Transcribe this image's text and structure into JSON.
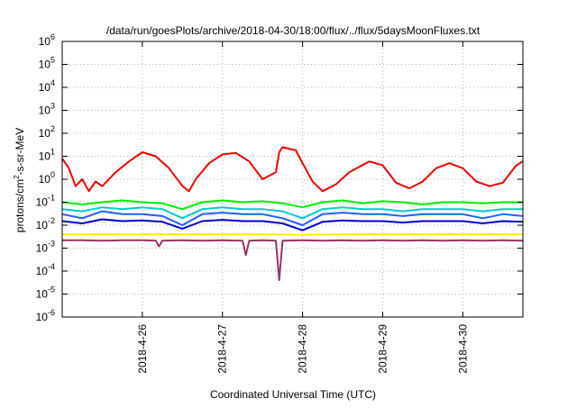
{
  "chart_data": {
    "type": "line",
    "title": "/data/run/goesPlots/archive/2018-04-30/18:00/flux/../flux/5daysMoonFluxes.txt",
    "xlabel": "Coordinated Universal Time (UTC)",
    "ylabel_main": "protons/cm",
    "ylabel_sup": "2",
    "ylabel_rest": "-s-sr-MeV",
    "y_scale": "log",
    "ylim": [
      1e-06,
      1000000.0
    ],
    "xlim": [
      "2018-04-25 00:00",
      "2018-04-30 18:00"
    ],
    "y_ticks": [
      {
        "value": 1e-06,
        "base": "10",
        "exp": "-6"
      },
      {
        "value": 1e-05,
        "base": "10",
        "exp": "-5"
      },
      {
        "value": 0.0001,
        "base": "10",
        "exp": "-4"
      },
      {
        "value": 0.001,
        "base": "10",
        "exp": "-3"
      },
      {
        "value": 0.01,
        "base": "10",
        "exp": "-2"
      },
      {
        "value": 0.1,
        "base": "10",
        "exp": "-1"
      },
      {
        "value": 1,
        "base": "10",
        "exp": "0"
      },
      {
        "value": 10,
        "base": "10",
        "exp": "1"
      },
      {
        "value": 100,
        "base": "10",
        "exp": "2"
      },
      {
        "value": 1000,
        "base": "10",
        "exp": "3"
      },
      {
        "value": 10000,
        "base": "10",
        "exp": "4"
      },
      {
        "value": 100000,
        "base": "10",
        "exp": "5"
      },
      {
        "value": 1000000,
        "base": "10",
        "exp": "6"
      }
    ],
    "x_ticks": [
      {
        "date": "2018-04-26",
        "label": "2018-4-26"
      },
      {
        "date": "2018-04-27",
        "label": "2018-4-27"
      },
      {
        "date": "2018-04-28",
        "label": "2018-4-28"
      },
      {
        "date": "2018-04-29",
        "label": "2018-4-29"
      },
      {
        "date": "2018-04-30",
        "label": "2018-4-30"
      }
    ],
    "grid": true,
    "series": [
      {
        "color": "#ee0000",
        "x": [
          "2018-04-25 00:00",
          "2018-04-25 02:00",
          "2018-04-25 04:00",
          "2018-04-25 06:00",
          "2018-04-25 08:00",
          "2018-04-25 10:00",
          "2018-04-25 12:00",
          "2018-04-25 16:00",
          "2018-04-25 20:00",
          "2018-04-26 00:00",
          "2018-04-26 04:00",
          "2018-04-26 08:00",
          "2018-04-26 12:00",
          "2018-04-26 14:00",
          "2018-04-26 16:00",
          "2018-04-26 20:00",
          "2018-04-27 00:00",
          "2018-04-27 04:00",
          "2018-04-27 08:00",
          "2018-04-27 12:00",
          "2018-04-27 16:00",
          "2018-04-27 17:00",
          "2018-04-27 18:00",
          "2018-04-27 22:00",
          "2018-04-28 00:00",
          "2018-04-28 03:00",
          "2018-04-28 06:00",
          "2018-04-28 10:00",
          "2018-04-28 14:00",
          "2018-04-28 20:00",
          "2018-04-29 00:00",
          "2018-04-29 04:00",
          "2018-04-29 08:00",
          "2018-04-29 12:00",
          "2018-04-29 16:00",
          "2018-04-29 20:00",
          "2018-04-30 00:00",
          "2018-04-30 04:00",
          "2018-04-30 08:00",
          "2018-04-30 12:00",
          "2018-04-30 16:00",
          "2018-04-30 18:00"
        ],
        "y": [
          8,
          3,
          0.5,
          1,
          0.3,
          0.8,
          0.5,
          2,
          6,
          15,
          10,
          3,
          0.5,
          0.3,
          1,
          5,
          12,
          14,
          6,
          1,
          2,
          15,
          25,
          18,
          5,
          0.8,
          0.3,
          0.6,
          2,
          6,
          4,
          0.7,
          0.4,
          0.8,
          3,
          5,
          3,
          0.8,
          0.5,
          0.7,
          4,
          6
        ]
      },
      {
        "color": "#00ee00",
        "x": [
          "2018-04-25 00:00",
          "2018-04-25 06:00",
          "2018-04-25 12:00",
          "2018-04-25 18:00",
          "2018-04-26 00:00",
          "2018-04-26 06:00",
          "2018-04-26 12:00",
          "2018-04-26 18:00",
          "2018-04-27 00:00",
          "2018-04-27 06:00",
          "2018-04-27 12:00",
          "2018-04-27 18:00",
          "2018-04-28 00:00",
          "2018-04-28 06:00",
          "2018-04-28 12:00",
          "2018-04-28 18:00",
          "2018-04-29 00:00",
          "2018-04-29 06:00",
          "2018-04-29 12:00",
          "2018-04-29 18:00",
          "2018-04-30 00:00",
          "2018-04-30 06:00",
          "2018-04-30 12:00",
          "2018-04-30 18:00"
        ],
        "y": [
          0.1,
          0.08,
          0.1,
          0.12,
          0.1,
          0.09,
          0.05,
          0.1,
          0.12,
          0.1,
          0.11,
          0.09,
          0.06,
          0.1,
          0.12,
          0.09,
          0.11,
          0.1,
          0.08,
          0.1,
          0.1,
          0.09,
          0.1,
          0.1
        ]
      },
      {
        "color": "#00cccc",
        "x": [
          "2018-04-25 00:00",
          "2018-04-25 06:00",
          "2018-04-25 12:00",
          "2018-04-25 18:00",
          "2018-04-26 00:00",
          "2018-04-26 06:00",
          "2018-04-26 12:00",
          "2018-04-26 18:00",
          "2018-04-27 00:00",
          "2018-04-27 06:00",
          "2018-04-27 12:00",
          "2018-04-27 18:00",
          "2018-04-28 00:00",
          "2018-04-28 06:00",
          "2018-04-28 12:00",
          "2018-04-28 18:00",
          "2018-04-29 00:00",
          "2018-04-29 06:00",
          "2018-04-29 12:00",
          "2018-04-29 18:00",
          "2018-04-30 00:00",
          "2018-04-30 06:00",
          "2018-04-30 12:00",
          "2018-04-30 18:00"
        ],
        "y": [
          0.05,
          0.04,
          0.06,
          0.05,
          0.06,
          0.05,
          0.02,
          0.05,
          0.06,
          0.05,
          0.05,
          0.04,
          0.02,
          0.05,
          0.06,
          0.05,
          0.05,
          0.04,
          0.05,
          0.05,
          0.05,
          0.04,
          0.05,
          0.05
        ]
      },
      {
        "color": "#1f5fff",
        "x": [
          "2018-04-25 00:00",
          "2018-04-25 06:00",
          "2018-04-25 12:00",
          "2018-04-25 18:00",
          "2018-04-26 00:00",
          "2018-04-26 06:00",
          "2018-04-26 12:00",
          "2018-04-26 18:00",
          "2018-04-27 00:00",
          "2018-04-27 06:00",
          "2018-04-27 12:00",
          "2018-04-27 18:00",
          "2018-04-28 00:00",
          "2018-04-28 06:00",
          "2018-04-28 12:00",
          "2018-04-28 18:00",
          "2018-04-29 00:00",
          "2018-04-29 06:00",
          "2018-04-29 12:00",
          "2018-04-29 18:00",
          "2018-04-30 00:00",
          "2018-04-30 06:00",
          "2018-04-30 12:00",
          "2018-04-30 18:00"
        ],
        "y": [
          0.03,
          0.02,
          0.04,
          0.03,
          0.03,
          0.025,
          0.01,
          0.03,
          0.035,
          0.03,
          0.03,
          0.02,
          0.01,
          0.03,
          0.035,
          0.03,
          0.03,
          0.025,
          0.03,
          0.03,
          0.03,
          0.02,
          0.03,
          0.025
        ]
      },
      {
        "color": "#0000cc",
        "x": [
          "2018-04-25 00:00",
          "2018-04-25 06:00",
          "2018-04-25 12:00",
          "2018-04-25 18:00",
          "2018-04-26 00:00",
          "2018-04-26 06:00",
          "2018-04-26 12:00",
          "2018-04-26 18:00",
          "2018-04-27 00:00",
          "2018-04-27 06:00",
          "2018-04-27 12:00",
          "2018-04-27 18:00",
          "2018-04-28 00:00",
          "2018-04-28 06:00",
          "2018-04-28 12:00",
          "2018-04-28 18:00",
          "2018-04-29 00:00",
          "2018-04-29 06:00",
          "2018-04-29 12:00",
          "2018-04-29 18:00",
          "2018-04-30 00:00",
          "2018-04-30 06:00",
          "2018-04-30 12:00",
          "2018-04-30 18:00"
        ],
        "y": [
          0.015,
          0.012,
          0.018,
          0.015,
          0.016,
          0.014,
          0.007,
          0.015,
          0.017,
          0.015,
          0.015,
          0.012,
          0.006,
          0.014,
          0.016,
          0.015,
          0.015,
          0.013,
          0.015,
          0.015,
          0.015,
          0.012,
          0.015,
          0.014
        ]
      },
      {
        "color": "#ffee00",
        "x": [
          "2018-04-25 00:00",
          "2018-04-25 12:00",
          "2018-04-26 00:00",
          "2018-04-26 12:00",
          "2018-04-27 00:00",
          "2018-04-27 12:00",
          "2018-04-28 00:00",
          "2018-04-28 12:00",
          "2018-04-29 00:00",
          "2018-04-29 12:00",
          "2018-04-30 00:00",
          "2018-04-30 12:00",
          "2018-04-30 18:00"
        ],
        "y": [
          0.004,
          0.004,
          0.004,
          0.004,
          0.004,
          0.004,
          0.0038,
          0.004,
          0.004,
          0.004,
          0.004,
          0.004,
          0.004
        ]
      },
      {
        "color": "#993366",
        "x": [
          "2018-04-25 00:00",
          "2018-04-25 06:00",
          "2018-04-25 12:00",
          "2018-04-25 18:00",
          "2018-04-26 00:00",
          "2018-04-26 04:00",
          "2018-04-26 05:00",
          "2018-04-26 06:00",
          "2018-04-26 12:00",
          "2018-04-26 18:00",
          "2018-04-27 00:00",
          "2018-04-27 06:00",
          "2018-04-27 07:00",
          "2018-04-27 08:00",
          "2018-04-27 12:00",
          "2018-04-27 16:00",
          "2018-04-27 17:00",
          "2018-04-27 18:00",
          "2018-04-28 00:00",
          "2018-04-28 06:00",
          "2018-04-28 12:00",
          "2018-04-28 18:00",
          "2018-04-29 00:00",
          "2018-04-29 06:00",
          "2018-04-29 12:00",
          "2018-04-29 18:00",
          "2018-04-30 00:00",
          "2018-04-30 06:00",
          "2018-04-30 12:00",
          "2018-04-30 18:00"
        ],
        "y": [
          0.0022,
          0.0022,
          0.0021,
          0.0022,
          0.0022,
          0.0021,
          0.0012,
          0.0021,
          0.0022,
          0.0021,
          0.0022,
          0.0021,
          0.0005,
          0.0021,
          0.0022,
          0.0021,
          4e-05,
          0.0021,
          0.0022,
          0.0021,
          0.0022,
          0.0021,
          0.0022,
          0.0021,
          0.0022,
          0.0021,
          0.0022,
          0.0021,
          0.0022,
          0.0021
        ]
      }
    ]
  }
}
